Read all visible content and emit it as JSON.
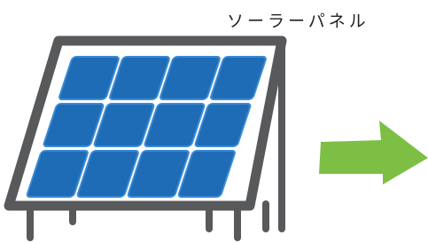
{
  "label": "ソーラーパネル"
}
